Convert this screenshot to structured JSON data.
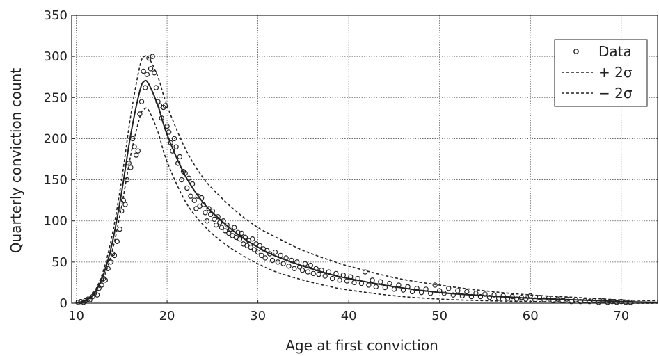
{
  "chart_data": {
    "type": "scatter",
    "xlabel": "Age at first conviction",
    "ylabel": "Quarterly conviction count",
    "xlim": [
      9.5,
      74
    ],
    "ylim": [
      0,
      350
    ],
    "xticks": [
      10,
      20,
      30,
      40,
      50,
      60,
      70
    ],
    "yticks": [
      0,
      50,
      100,
      150,
      200,
      250,
      300,
      350
    ],
    "grid": true,
    "legend_position": "top-right",
    "legend": [
      {
        "label": "Data",
        "style": "circle-marker"
      },
      {
        "label": "+ 2σ",
        "style": "dashed-line"
      },
      {
        "label": "− 2σ",
        "style": "dashed-line"
      }
    ],
    "series": [
      {
        "name": "Data",
        "kind": "points",
        "points": [
          [
            10.2,
            1
          ],
          [
            10.5,
            2
          ],
          [
            10.8,
            1
          ],
          [
            11.0,
            3
          ],
          [
            11.3,
            5
          ],
          [
            11.5,
            4
          ],
          [
            11.8,
            8
          ],
          [
            12.0,
            12
          ],
          [
            12.3,
            10
          ],
          [
            12.5,
            18
          ],
          [
            12.8,
            22
          ],
          [
            13.0,
            30
          ],
          [
            13.2,
            28
          ],
          [
            13.5,
            42
          ],
          [
            13.8,
            50
          ],
          [
            14.0,
            60
          ],
          [
            14.2,
            58
          ],
          [
            14.5,
            75
          ],
          [
            14.8,
            90
          ],
          [
            15.0,
            112
          ],
          [
            15.2,
            125
          ],
          [
            15.4,
            120
          ],
          [
            15.6,
            150
          ],
          [
            15.8,
            170
          ],
          [
            16.0,
            165
          ],
          [
            16.2,
            200
          ],
          [
            16.4,
            190
          ],
          [
            16.6,
            180
          ],
          [
            16.8,
            185
          ],
          [
            17.0,
            230
          ],
          [
            17.2,
            245
          ],
          [
            17.4,
            282
          ],
          [
            17.6,
            262
          ],
          [
            17.8,
            278
          ],
          [
            18.0,
            298
          ],
          [
            18.2,
            285
          ],
          [
            18.4,
            300
          ],
          [
            18.6,
            280
          ],
          [
            18.8,
            262
          ],
          [
            19.0,
            245
          ],
          [
            19.2,
            240
          ],
          [
            19.4,
            225
          ],
          [
            19.6,
            238
          ],
          [
            19.8,
            240
          ],
          [
            20.0,
            215
          ],
          [
            20.2,
            208
          ],
          [
            20.4,
            195
          ],
          [
            20.6,
            185
          ],
          [
            20.8,
            200
          ],
          [
            21.0,
            190
          ],
          [
            21.2,
            170
          ],
          [
            21.4,
            178
          ],
          [
            21.6,
            150
          ],
          [
            21.8,
            160
          ],
          [
            22.0,
            158
          ],
          [
            22.2,
            140
          ],
          [
            22.4,
            152
          ],
          [
            22.6,
            130
          ],
          [
            22.8,
            145
          ],
          [
            23.0,
            125
          ],
          [
            23.2,
            115
          ],
          [
            23.4,
            130
          ],
          [
            23.6,
            118
          ],
          [
            23.8,
            128
          ],
          [
            24.0,
            120
          ],
          [
            24.2,
            110
          ],
          [
            24.4,
            100
          ],
          [
            24.6,
            115
          ],
          [
            24.8,
            108
          ],
          [
            25.0,
            112
          ],
          [
            25.2,
            102
          ],
          [
            25.4,
            95
          ],
          [
            25.6,
            105
          ],
          [
            25.8,
            98
          ],
          [
            26.0,
            92
          ],
          [
            26.2,
            100
          ],
          [
            26.4,
            88
          ],
          [
            26.6,
            95
          ],
          [
            26.8,
            85
          ],
          [
            27.0,
            90
          ],
          [
            27.2,
            82
          ],
          [
            27.4,
            92
          ],
          [
            27.6,
            80
          ],
          [
            27.8,
            86
          ],
          [
            28.0,
            78
          ],
          [
            28.2,
            85
          ],
          [
            28.4,
            72
          ],
          [
            28.6,
            80
          ],
          [
            28.8,
            70
          ],
          [
            29.0,
            76
          ],
          [
            29.2,
            68
          ],
          [
            29.4,
            78
          ],
          [
            29.6,
            65
          ],
          [
            29.8,
            72
          ],
          [
            30.0,
            62
          ],
          [
            30.2,
            70
          ],
          [
            30.4,
            58
          ],
          [
            30.6,
            66
          ],
          [
            30.8,
            55
          ],
          [
            31.0,
            64
          ],
          [
            31.3,
            60
          ],
          [
            31.6,
            52
          ],
          [
            31.9,
            62
          ],
          [
            32.2,
            50
          ],
          [
            32.5,
            58
          ],
          [
            32.8,
            48
          ],
          [
            33.1,
            55
          ],
          [
            33.4,
            45
          ],
          [
            33.7,
            52
          ],
          [
            34.0,
            42
          ],
          [
            34.3,
            50
          ],
          [
            34.6,
            44
          ],
          [
            34.9,
            40
          ],
          [
            35.2,
            48
          ],
          [
            35.5,
            38
          ],
          [
            35.8,
            46
          ],
          [
            36.1,
            36
          ],
          [
            36.4,
            42
          ],
          [
            36.7,
            35
          ],
          [
            37.0,
            40
          ],
          [
            37.4,
            33
          ],
          [
            37.8,
            38
          ],
          [
            38.2,
            30
          ],
          [
            38.6,
            36
          ],
          [
            39.0,
            28
          ],
          [
            39.4,
            34
          ],
          [
            39.8,
            27
          ],
          [
            40.2,
            32
          ],
          [
            40.6,
            25
          ],
          [
            41.0,
            30
          ],
          [
            41.4,
            24
          ],
          [
            41.8,
            38
          ],
          [
            42.2,
            22
          ],
          [
            42.6,
            28
          ],
          [
            43.0,
            20
          ],
          [
            43.5,
            26
          ],
          [
            44.0,
            19
          ],
          [
            44.5,
            24
          ],
          [
            45.0,
            17
          ],
          [
            45.5,
            22
          ],
          [
            46.0,
            16
          ],
          [
            46.5,
            20
          ],
          [
            47.0,
            14
          ],
          [
            47.5,
            18
          ],
          [
            48.0,
            13
          ],
          [
            48.5,
            17
          ],
          [
            49.0,
            12
          ],
          [
            49.5,
            22
          ],
          [
            50.0,
            15
          ],
          [
            50.5,
            12
          ],
          [
            51.0,
            18
          ],
          [
            51.5,
            10
          ],
          [
            52.0,
            15
          ],
          [
            52.5,
            9
          ],
          [
            53.0,
            14
          ],
          [
            53.5,
            8
          ],
          [
            54.0,
            12
          ],
          [
            54.5,
            8
          ],
          [
            55.0,
            11
          ],
          [
            55.5,
            7
          ],
          [
            56.0,
            10
          ],
          [
            56.5,
            6
          ],
          [
            57.0,
            9
          ],
          [
            57.5,
            6
          ],
          [
            58.0,
            8
          ],
          [
            58.5,
            5
          ],
          [
            59.0,
            7
          ],
          [
            59.5,
            5
          ],
          [
            60.0,
            9
          ],
          [
            60.5,
            4
          ],
          [
            61.0,
            7
          ],
          [
            61.5,
            4
          ],
          [
            62.0,
            6
          ],
          [
            62.5,
            3
          ],
          [
            63.0,
            5
          ],
          [
            63.5,
            3
          ],
          [
            64.0,
            5
          ],
          [
            64.5,
            2
          ],
          [
            65.0,
            4
          ],
          [
            65.5,
            2
          ],
          [
            66.0,
            3
          ],
          [
            66.5,
            2
          ],
          [
            67.0,
            3
          ],
          [
            67.5,
            1
          ],
          [
            68.0,
            3
          ],
          [
            68.5,
            1
          ],
          [
            69.0,
            2
          ],
          [
            69.5,
            1
          ],
          [
            70.0,
            2
          ],
          [
            70.5,
            1
          ],
          [
            71.0,
            1
          ]
        ]
      },
      {
        "name": "",
        "kind": "solid-line",
        "points": [
          [
            10,
            0
          ],
          [
            11,
            3
          ],
          [
            12,
            12
          ],
          [
            13,
            35
          ],
          [
            14,
            75
          ],
          [
            15,
            135
          ],
          [
            16,
            205
          ],
          [
            17,
            258
          ],
          [
            17.5,
            270
          ],
          [
            18,
            266
          ],
          [
            19,
            240
          ],
          [
            20,
            205
          ],
          [
            22,
            155
          ],
          [
            24,
            122
          ],
          [
            26,
            100
          ],
          [
            28,
            82
          ],
          [
            30,
            68
          ],
          [
            32,
            57
          ],
          [
            35,
            45
          ],
          [
            38,
            35
          ],
          [
            40,
            30
          ],
          [
            45,
            20
          ],
          [
            50,
            13
          ],
          [
            55,
            9
          ],
          [
            60,
            6
          ],
          [
            65,
            4
          ],
          [
            70,
            2
          ],
          [
            74,
            1
          ]
        ]
      },
      {
        "name": "+ 2σ",
        "kind": "dashed-line",
        "points": [
          [
            10,
            0
          ],
          [
            11,
            4
          ],
          [
            12,
            14
          ],
          [
            13,
            40
          ],
          [
            14,
            85
          ],
          [
            15,
            150
          ],
          [
            16,
            228
          ],
          [
            17,
            288
          ],
          [
            17.5,
            300
          ],
          [
            18,
            298
          ],
          [
            19,
            275
          ],
          [
            20,
            240
          ],
          [
            22,
            188
          ],
          [
            24,
            152
          ],
          [
            26,
            128
          ],
          [
            28,
            108
          ],
          [
            30,
            92
          ],
          [
            32,
            80
          ],
          [
            35,
            64
          ],
          [
            38,
            52
          ],
          [
            40,
            45
          ],
          [
            45,
            31
          ],
          [
            50,
            22
          ],
          [
            55,
            15
          ],
          [
            60,
            10
          ],
          [
            65,
            7
          ],
          [
            70,
            4
          ],
          [
            74,
            3
          ]
        ]
      },
      {
        "name": "− 2σ",
        "kind": "dashed-line",
        "points": [
          [
            10,
            0
          ],
          [
            11,
            2
          ],
          [
            12,
            10
          ],
          [
            13,
            30
          ],
          [
            14,
            65
          ],
          [
            15,
            118
          ],
          [
            16,
            180
          ],
          [
            17,
            226
          ],
          [
            17.5,
            236
          ],
          [
            18,
            234
          ],
          [
            19,
            208
          ],
          [
            20,
            172
          ],
          [
            22,
            124
          ],
          [
            24,
            95
          ],
          [
            26,
            75
          ],
          [
            28,
            60
          ],
          [
            30,
            48
          ],
          [
            32,
            38
          ],
          [
            35,
            28
          ],
          [
            38,
            20
          ],
          [
            40,
            16
          ],
          [
            45,
            9
          ],
          [
            50,
            5
          ],
          [
            55,
            3
          ],
          [
            60,
            2
          ],
          [
            65,
            1
          ],
          [
            70,
            0
          ],
          [
            74,
            0
          ]
        ]
      }
    ]
  }
}
